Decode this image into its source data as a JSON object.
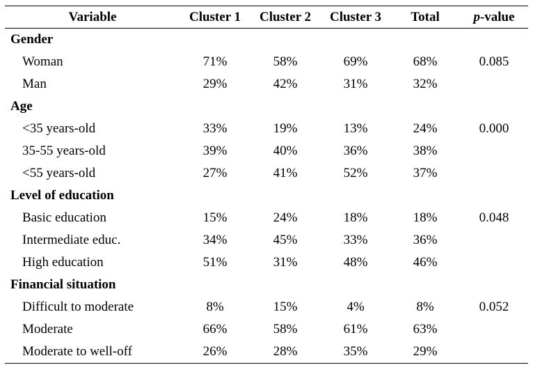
{
  "header": {
    "variable": "Variable",
    "cluster1": "Cluster 1",
    "cluster2": "Cluster 2",
    "cluster3": "Cluster 3",
    "total": "Total",
    "pvalue_p": "p",
    "pvalue_rest": "-value"
  },
  "groups": [
    {
      "label": "Gender",
      "rows": [
        {
          "label": "Woman",
          "c1": "71%",
          "c2": "58%",
          "c3": "69%",
          "total": "68%",
          "p": "0.085"
        },
        {
          "label": "Man",
          "c1": "29%",
          "c2": "42%",
          "c3": "31%",
          "total": "32%",
          "p": ""
        }
      ]
    },
    {
      "label": "Age",
      "rows": [
        {
          "label": "<35 years-old",
          "c1": "33%",
          "c2": "19%",
          "c3": "13%",
          "total": "24%",
          "p": "0.000"
        },
        {
          "label": "35-55 years-old",
          "c1": "39%",
          "c2": "40%",
          "c3": "36%",
          "total": "38%",
          "p": ""
        },
        {
          "label": "<55 years-old",
          "c1": "27%",
          "c2": "41%",
          "c3": "52%",
          "total": "37%",
          "p": ""
        }
      ]
    },
    {
      "label": "Level of education",
      "rows": [
        {
          "label": "Basic education",
          "c1": "15%",
          "c2": "24%",
          "c3": "18%",
          "total": "18%",
          "p": "0.048"
        },
        {
          "label": "Intermediate educ.",
          "c1": "34%",
          "c2": "45%",
          "c3": "33%",
          "total": "36%",
          "p": ""
        },
        {
          "label": "High education",
          "c1": "51%",
          "c2": "31%",
          "c3": "48%",
          "total": "46%",
          "p": ""
        }
      ]
    },
    {
      "label": "Financial situation",
      "rows": [
        {
          "label": "Difficult to moderate",
          "c1": "8%",
          "c2": "15%",
          "c3": "4%",
          "total": "8%",
          "p": "0.052"
        },
        {
          "label": "Moderate",
          "c1": "66%",
          "c2": "58%",
          "c3": "61%",
          "total": "63%",
          "p": ""
        },
        {
          "label": "Moderate to well-off",
          "c1": "26%",
          "c2": "28%",
          "c3": "35%",
          "total": "29%",
          "p": ""
        }
      ]
    }
  ]
}
